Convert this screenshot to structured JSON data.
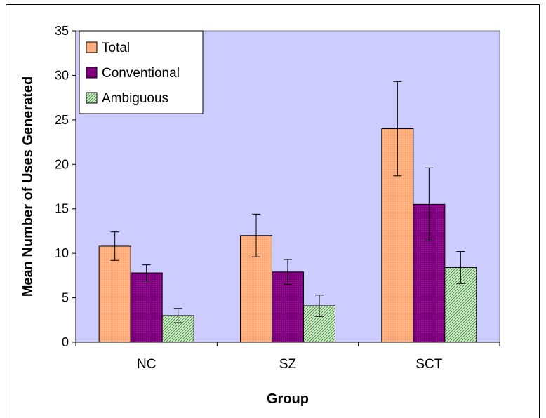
{
  "chart_data": {
    "type": "bar",
    "xlabel": "Group",
    "ylabel": "Mean Number of Uses Generated",
    "categories": [
      "NC",
      "SZ",
      "SCT"
    ],
    "ylim": [
      0,
      35
    ],
    "yticks": [
      0,
      5,
      10,
      15,
      20,
      25,
      30,
      35
    ],
    "grid": false,
    "legend_position": "top-left",
    "plot_background": "#ccccff",
    "series": [
      {
        "name": "Total",
        "color": "#ffaa77",
        "pattern": "dots",
        "values": [
          10.8,
          12.0,
          24.0
        ],
        "error": [
          1.6,
          2.4,
          5.3
        ]
      },
      {
        "name": "Conventional",
        "color": "#800080",
        "pattern": "dots",
        "values": [
          7.8,
          7.9,
          15.5
        ],
        "error": [
          0.9,
          1.4,
          4.1
        ]
      },
      {
        "name": "Ambiguous",
        "color": "#c8e8c0",
        "pattern": "hatch",
        "values": [
          3.0,
          4.1,
          8.4
        ],
        "error": [
          0.8,
          1.2,
          1.8
        ]
      }
    ]
  }
}
